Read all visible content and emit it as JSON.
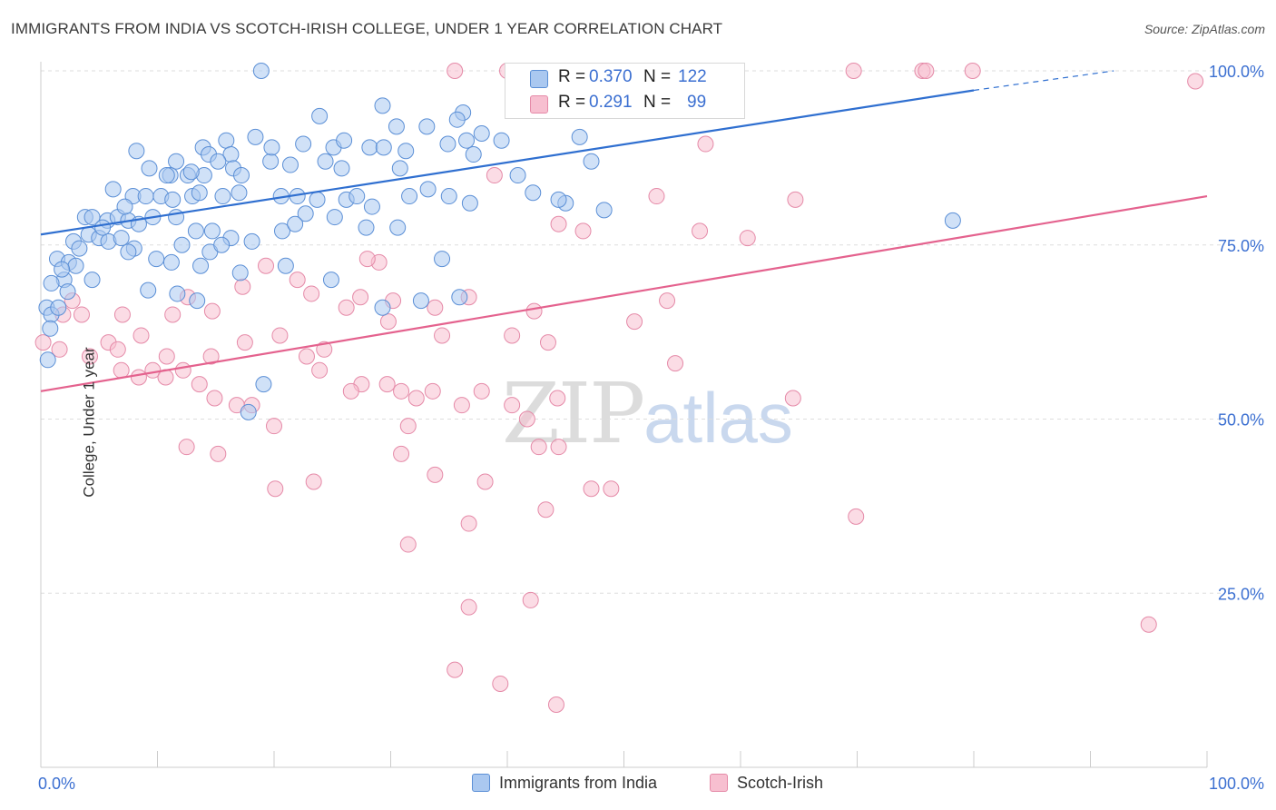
{
  "header": {
    "title": "IMMIGRANTS FROM INDIA VS SCOTCH-IRISH COLLEGE, UNDER 1 YEAR CORRELATION CHART",
    "source": "Source: ZipAtlas.com"
  },
  "watermark": {
    "zip": "ZIP",
    "atlas": "atlas"
  },
  "legend_top": {
    "row1": {
      "r_label": "R =",
      "r_value": "0.370",
      "n_label": "N =",
      "n_value": "122"
    },
    "row2": {
      "r_label": "R =",
      "r_value": "0.291",
      "n_label": "N =",
      "n_value": "99"
    }
  },
  "colors": {
    "blue_fill": "#aac8f0",
    "blue_stroke": "#5b8fd6",
    "blue_line": "#2f6fd0",
    "pink_fill": "#f7bfd0",
    "pink_stroke": "#e58aa8",
    "pink_line": "#e4628e",
    "tick_label": "#3b6fd1",
    "grid": "#dddddd"
  },
  "chart_data": {
    "type": "scatter",
    "title": "IMMIGRANTS FROM INDIA VS SCOTCH-IRISH COLLEGE, UNDER 1 YEAR CORRELATION CHART",
    "xlabel": "",
    "ylabel": "College, Under 1 year",
    "xlim": [
      0,
      100
    ],
    "ylim": [
      0,
      100
    ],
    "x_ticks": [
      "0.0%",
      "100.0%"
    ],
    "y_ticks": [
      {
        "value": 25,
        "label": "25.0%"
      },
      {
        "value": 50,
        "label": "50.0%"
      },
      {
        "value": 75,
        "label": "75.0%"
      },
      {
        "value": 100,
        "label": "100.0%"
      }
    ],
    "grid": "horizontal dashed",
    "legend_position": "bottom",
    "series": [
      {
        "name": "Immigrants from India",
        "color": "#aac8f0",
        "r": 0.37,
        "n": 122,
        "trend": {
          "x0": 0,
          "y0": 76.5,
          "x1": 80,
          "y1": 97.2,
          "dashed_to_x": 92,
          "dashed_to_y": 100
        },
        "points": [
          [
            18.9,
            100
          ],
          [
            29.3,
            95
          ],
          [
            36.2,
            94
          ],
          [
            30.5,
            92
          ],
          [
            23.9,
            93.5
          ],
          [
            33.1,
            92
          ],
          [
            37.8,
            91
          ],
          [
            36.5,
            90
          ],
          [
            34.9,
            89.5
          ],
          [
            8.2,
            88.5
          ],
          [
            13.9,
            89
          ],
          [
            15.9,
            90
          ],
          [
            22.5,
            89.5
          ],
          [
            25.1,
            89
          ],
          [
            28.2,
            89
          ],
          [
            24.4,
            87
          ],
          [
            14.4,
            88
          ],
          [
            16.3,
            88
          ],
          [
            37.1,
            88
          ],
          [
            11.6,
            87
          ],
          [
            19.7,
            87
          ],
          [
            9.3,
            86
          ],
          [
            11.1,
            85
          ],
          [
            12.6,
            85
          ],
          [
            14,
            85
          ],
          [
            16.5,
            86
          ],
          [
            25.8,
            86
          ],
          [
            30.8,
            86
          ],
          [
            10.8,
            85
          ],
          [
            17.2,
            85
          ],
          [
            6.2,
            83
          ],
          [
            7.9,
            82
          ],
          [
            9,
            82
          ],
          [
            10.3,
            82
          ],
          [
            11.3,
            81.5
          ],
          [
            13,
            82
          ],
          [
            15.6,
            82
          ],
          [
            17,
            82.5
          ],
          [
            20.6,
            82
          ],
          [
            22,
            82
          ],
          [
            23.7,
            81.5
          ],
          [
            26.2,
            81.5
          ],
          [
            28.4,
            80.5
          ],
          [
            31.6,
            82
          ],
          [
            35,
            82
          ],
          [
            36.8,
            81
          ],
          [
            3.8,
            79
          ],
          [
            4.4,
            79
          ],
          [
            5.7,
            78.5
          ],
          [
            6.6,
            79
          ],
          [
            7.5,
            78.5
          ],
          [
            8.4,
            78
          ],
          [
            9.6,
            79
          ],
          [
            11.6,
            79
          ],
          [
            13.3,
            77
          ],
          [
            14.7,
            77
          ],
          [
            16.3,
            76
          ],
          [
            22.7,
            79.5
          ],
          [
            25.2,
            79
          ],
          [
            4.1,
            76.5
          ],
          [
            5,
            76
          ],
          [
            5.8,
            75.5
          ],
          [
            6.9,
            76
          ],
          [
            2.8,
            75.5
          ],
          [
            3.3,
            74.5
          ],
          [
            1.4,
            73
          ],
          [
            2.4,
            72.5
          ],
          [
            8,
            74.5
          ],
          [
            9.9,
            73
          ],
          [
            12.1,
            75
          ],
          [
            14.5,
            74
          ],
          [
            15.5,
            75
          ],
          [
            18.1,
            75.5
          ],
          [
            20.7,
            77
          ],
          [
            21.8,
            78
          ],
          [
            27.9,
            77.5
          ],
          [
            30.6,
            77.5
          ],
          [
            2,
            70
          ],
          [
            4.4,
            70
          ],
          [
            9.2,
            68.5
          ],
          [
            11.7,
            68
          ],
          [
            13.4,
            67
          ],
          [
            0.5,
            66
          ],
          [
            0.9,
            65
          ],
          [
            1.5,
            66
          ],
          [
            7.5,
            74
          ],
          [
            11.2,
            72.5
          ],
          [
            13.7,
            72
          ],
          [
            17.1,
            71
          ],
          [
            21,
            72
          ],
          [
            24.9,
            70
          ],
          [
            34.4,
            73
          ],
          [
            29.3,
            66
          ],
          [
            32.6,
            67
          ],
          [
            35.9,
            67.5
          ],
          [
            0.8,
            63
          ],
          [
            0.6,
            58.5
          ],
          [
            19.1,
            55
          ],
          [
            17.8,
            51
          ],
          [
            78.2,
            78.5
          ],
          [
            48.3,
            80
          ],
          [
            45,
            81
          ],
          [
            44.4,
            81.5
          ],
          [
            40.9,
            85
          ],
          [
            42.2,
            82.5
          ],
          [
            47.2,
            87
          ],
          [
            46.2,
            90.5
          ],
          [
            39.5,
            90
          ],
          [
            33.2,
            83
          ],
          [
            27.1,
            82
          ],
          [
            31.3,
            88.5
          ],
          [
            29.4,
            89
          ],
          [
            26,
            90
          ],
          [
            21.4,
            86.5
          ],
          [
            19.8,
            89
          ],
          [
            18.4,
            90.5
          ],
          [
            15.2,
            87
          ],
          [
            12.9,
            85.5
          ],
          [
            13.6,
            82.5
          ],
          [
            7.2,
            80.5
          ],
          [
            5.3,
            77.5
          ],
          [
            3,
            72
          ],
          [
            1.8,
            71.5
          ],
          [
            0.9,
            69.5
          ],
          [
            2.3,
            68.3
          ],
          [
            35.7,
            93
          ]
        ]
      },
      {
        "name": "Scotch-Irish",
        "color": "#f7bfd0",
        "r": 0.291,
        "n": 99,
        "trend": {
          "x0": 0,
          "y0": 54,
          "x1": 100,
          "y1": 82
        },
        "points": [
          [
            35.5,
            100
          ],
          [
            40,
            100
          ],
          [
            47.5,
            100
          ],
          [
            69.7,
            100
          ],
          [
            75.6,
            100
          ],
          [
            75.9,
            100
          ],
          [
            79.9,
            100
          ],
          [
            99,
            98.5
          ],
          [
            57,
            89.5
          ],
          [
            38.9,
            85
          ],
          [
            52.8,
            82
          ],
          [
            64.7,
            81.5
          ],
          [
            46.5,
            77
          ],
          [
            44.4,
            78
          ],
          [
            56.5,
            77
          ],
          [
            60.6,
            76
          ],
          [
            29,
            72.5
          ],
          [
            28,
            73
          ],
          [
            19.3,
            72
          ],
          [
            22,
            70
          ],
          [
            17.3,
            69
          ],
          [
            12.6,
            67.5
          ],
          [
            23.2,
            68
          ],
          [
            27.4,
            67.5
          ],
          [
            30.2,
            67
          ],
          [
            33.8,
            66
          ],
          [
            36.7,
            67.5
          ],
          [
            42.3,
            65.5
          ],
          [
            53.7,
            67
          ],
          [
            2.7,
            67
          ],
          [
            1.9,
            65
          ],
          [
            3.5,
            65
          ],
          [
            7,
            65
          ],
          [
            11.3,
            65
          ],
          [
            14.7,
            65.5
          ],
          [
            20.5,
            62
          ],
          [
            24.3,
            60
          ],
          [
            26.2,
            66
          ],
          [
            29.8,
            64
          ],
          [
            34.4,
            62
          ],
          [
            40.4,
            62
          ],
          [
            43.5,
            61
          ],
          [
            1.6,
            60
          ],
          [
            5.8,
            61
          ],
          [
            6.6,
            60
          ],
          [
            4.2,
            59
          ],
          [
            8.6,
            62
          ],
          [
            10.8,
            59
          ],
          [
            14.6,
            59
          ],
          [
            17.5,
            61
          ],
          [
            22.8,
            59
          ],
          [
            23.9,
            57
          ],
          [
            27.5,
            55
          ],
          [
            29.7,
            55
          ],
          [
            30.9,
            54
          ],
          [
            32.2,
            53
          ],
          [
            33.6,
            54
          ],
          [
            37.8,
            54
          ],
          [
            40.4,
            52
          ],
          [
            44.3,
            53
          ],
          [
            6.9,
            57
          ],
          [
            8.4,
            56
          ],
          [
            9.6,
            57
          ],
          [
            10.7,
            56
          ],
          [
            12.2,
            57
          ],
          [
            13.6,
            55
          ],
          [
            14.9,
            53
          ],
          [
            16.8,
            52
          ],
          [
            18.1,
            52
          ],
          [
            26.6,
            54
          ],
          [
            31.5,
            49
          ],
          [
            36.1,
            52
          ],
          [
            41.7,
            50
          ],
          [
            20,
            49
          ],
          [
            15.2,
            45
          ],
          [
            12.5,
            46
          ],
          [
            30.9,
            45
          ],
          [
            33.8,
            42
          ],
          [
            38.1,
            41
          ],
          [
            42.7,
            46
          ],
          [
            44.4,
            46
          ],
          [
            47.2,
            40
          ],
          [
            48.9,
            40
          ],
          [
            20.1,
            40
          ],
          [
            23.4,
            41
          ],
          [
            31.5,
            32
          ],
          [
            36.7,
            35
          ],
          [
            43.3,
            37
          ],
          [
            36.7,
            23
          ],
          [
            42,
            24
          ],
          [
            39.4,
            12
          ],
          [
            35.5,
            14
          ],
          [
            44.2,
            9
          ],
          [
            95,
            20.5
          ],
          [
            69.9,
            36
          ],
          [
            64.5,
            53
          ],
          [
            50.9,
            64
          ],
          [
            54.4,
            58
          ],
          [
            0.2,
            61
          ]
        ]
      }
    ]
  }
}
